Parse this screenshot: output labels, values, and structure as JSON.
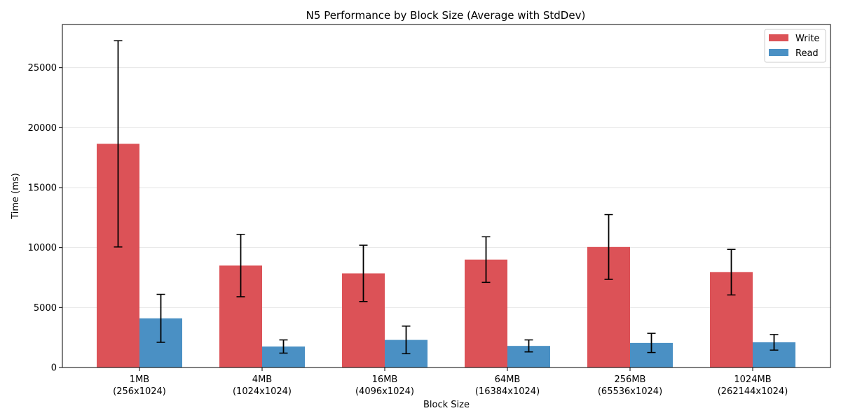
{
  "chart_data": {
    "type": "bar",
    "title": "N5 Performance by Block Size (Average with StdDev)",
    "xlabel": "Block Size",
    "ylabel": "Time (ms)",
    "categories": [
      {
        "line1": "1MB",
        "line2": "(256x1024)"
      },
      {
        "line1": "4MB",
        "line2": "(1024x1024)"
      },
      {
        "line1": "16MB",
        "line2": "(4096x1024)"
      },
      {
        "line1": "64MB",
        "line2": "(16384x1024)"
      },
      {
        "line1": "256MB",
        "line2": "(65536x1024)"
      },
      {
        "line1": "1024MB",
        "line2": "(262144x1024)"
      }
    ],
    "series": [
      {
        "name": "Write",
        "color": "#dc5257",
        "values": [
          18650,
          8500,
          7850,
          9000,
          10050,
          7950
        ],
        "stddev": [
          8600,
          2600,
          2350,
          1900,
          2700,
          1900
        ]
      },
      {
        "name": "Read",
        "color": "#4a90c4",
        "values": [
          4100,
          1750,
          2300,
          1800,
          2050,
          2100
        ],
        "stddev": [
          2000,
          550,
          1150,
          500,
          800,
          650
        ]
      }
    ],
    "ylim": [
      0,
      28600
    ],
    "yticks": [
      0,
      5000,
      10000,
      15000,
      20000,
      25000
    ],
    "grid": "y",
    "legend_position": "top-right"
  }
}
